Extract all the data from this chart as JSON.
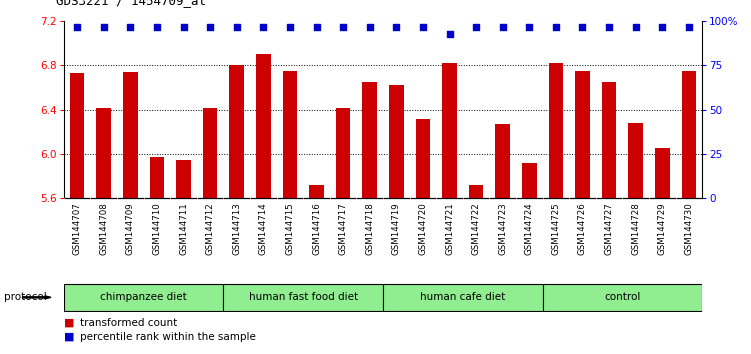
{
  "title": "GDS3221 / 1454709_at",
  "samples": [
    "GSM144707",
    "GSM144708",
    "GSM144709",
    "GSM144710",
    "GSM144711",
    "GSM144712",
    "GSM144713",
    "GSM144714",
    "GSM144715",
    "GSM144716",
    "GSM144717",
    "GSM144718",
    "GSM144719",
    "GSM144720",
    "GSM144721",
    "GSM144722",
    "GSM144723",
    "GSM144724",
    "GSM144725",
    "GSM144726",
    "GSM144727",
    "GSM144728",
    "GSM144729",
    "GSM144730"
  ],
  "bar_values": [
    6.73,
    6.42,
    6.74,
    5.97,
    5.95,
    6.42,
    6.8,
    6.9,
    6.75,
    5.72,
    6.42,
    6.65,
    6.62,
    6.32,
    6.82,
    5.72,
    6.27,
    5.92,
    6.82,
    6.75,
    6.65,
    6.28,
    6.05,
    6.75
  ],
  "percentile_values": [
    97,
    97,
    97,
    97,
    97,
    97,
    97,
    97,
    97,
    97,
    97,
    97,
    97,
    97,
    93,
    97,
    97,
    97,
    97,
    97,
    97,
    97,
    97,
    97
  ],
  "bar_color": "#cc0000",
  "percentile_color": "#0000cc",
  "ylim_left": [
    5.6,
    7.2
  ],
  "ylim_right": [
    0,
    100
  ],
  "yticks_left": [
    5.6,
    6.0,
    6.4,
    6.8,
    7.2
  ],
  "yticks_right": [
    0,
    25,
    50,
    75,
    100
  ],
  "ytick_labels_right": [
    "0",
    "25",
    "50",
    "75",
    "100%"
  ],
  "groups": [
    {
      "label": "chimpanzee diet",
      "start": 0,
      "end": 6
    },
    {
      "label": "human fast food diet",
      "start": 6,
      "end": 12
    },
    {
      "label": "human cafe diet",
      "start": 12,
      "end": 18
    },
    {
      "label": "control",
      "start": 18,
      "end": 24
    }
  ],
  "group_color": "#90ee90",
  "protocol_label": "protocol",
  "legend_items": [
    {
      "label": "transformed count",
      "color": "#cc0000"
    },
    {
      "label": "percentile rank within the sample",
      "color": "#0000cc"
    }
  ],
  "plot_bg_color": "#ffffff",
  "label_bg_color": "#c8c8c8",
  "fig_bg_color": "#ffffff"
}
